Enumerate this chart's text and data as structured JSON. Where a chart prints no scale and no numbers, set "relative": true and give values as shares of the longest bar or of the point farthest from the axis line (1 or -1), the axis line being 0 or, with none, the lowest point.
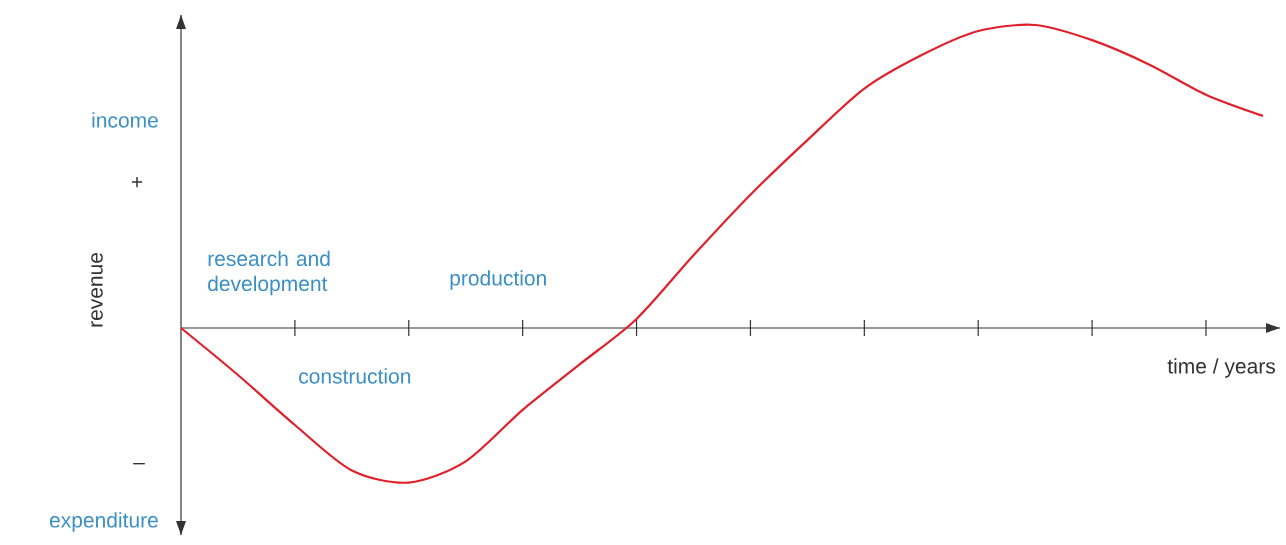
{
  "chart_data": {
    "type": "line",
    "relative": true,
    "xlabel": "time / years",
    "ylabel": "revenue",
    "categories": [
      null,
      null,
      null,
      null,
      null,
      null,
      null,
      null,
      null,
      null,
      null,
      null,
      null,
      null,
      null,
      null,
      null,
      null,
      null,
      null
    ],
    "series": [
      {
        "color": "#e0202a",
        "values": [
          0,
          -0.155,
          -0.32,
          -0.47,
          -0.51,
          -0.44,
          -0.27,
          -0.12,
          0.03,
          0.24,
          0.44,
          0.62,
          0.79,
          0.9,
          0.98,
          1,
          0.95,
          0.87,
          0.77,
          0.7
        ]
      }
    ],
    "annotations": [
      "income",
      "+",
      "research and development",
      "production",
      "construction",
      "–",
      "expenditure"
    ]
  }
}
